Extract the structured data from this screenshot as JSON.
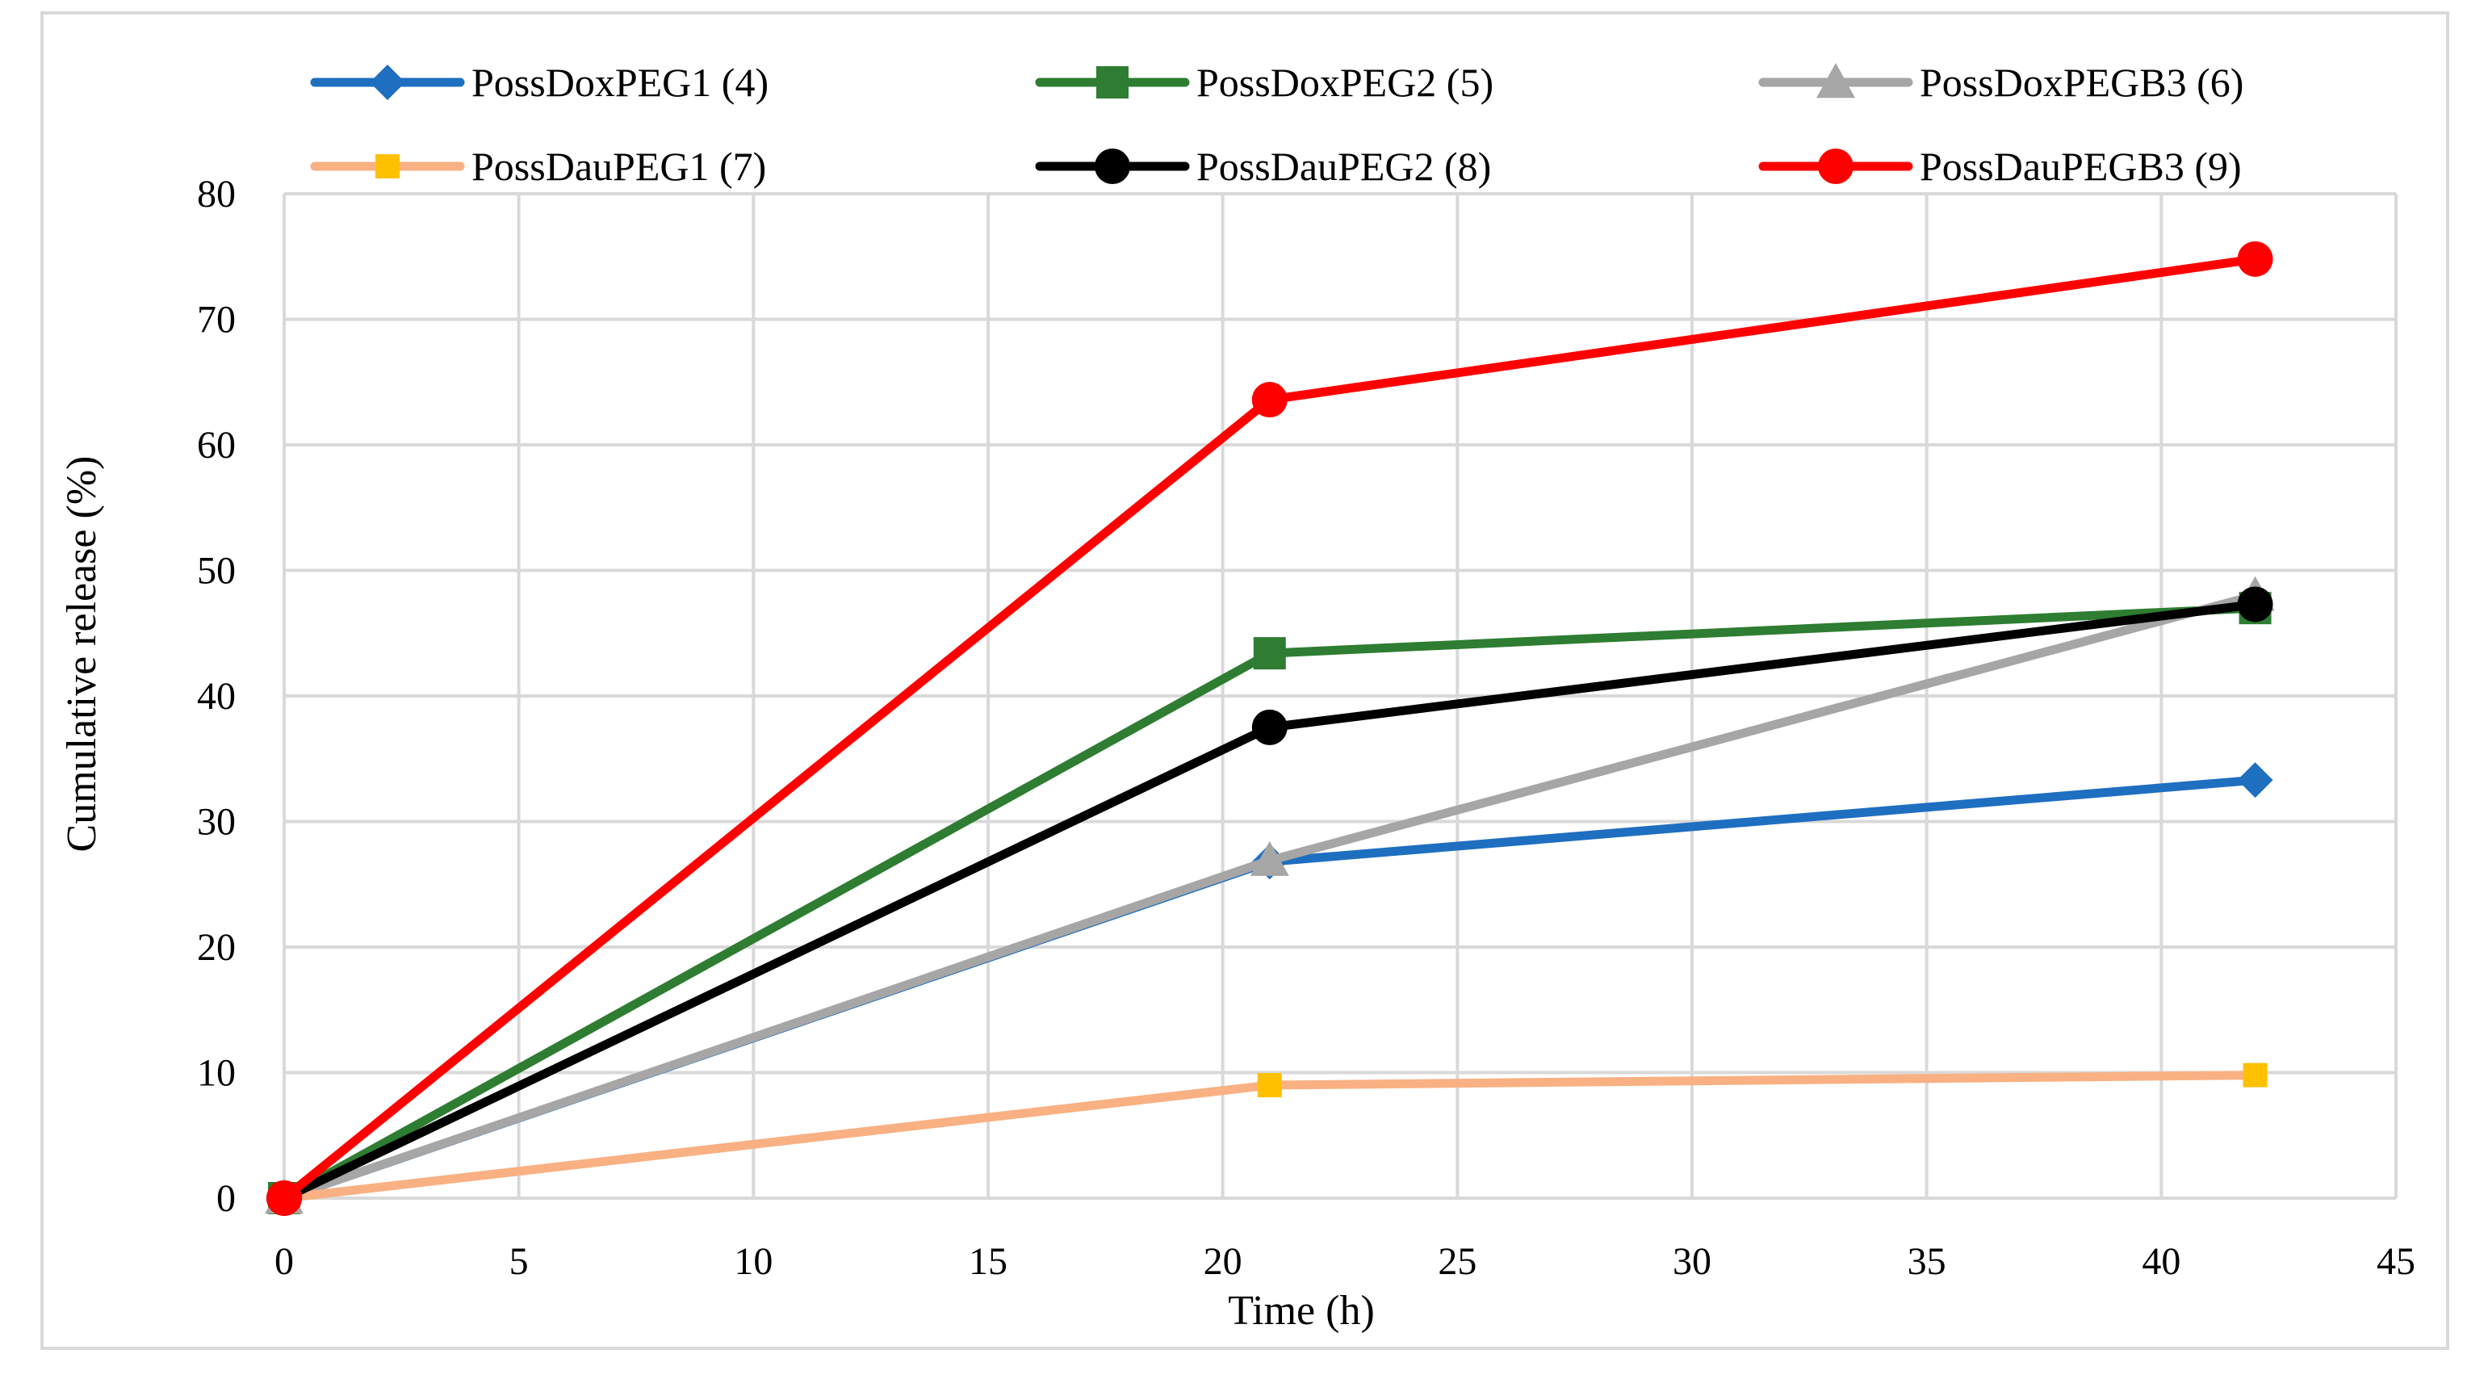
{
  "chart_data": {
    "type": "line",
    "title": "",
    "xlabel": "Time (h)",
    "ylabel": "Cumulative release (%)",
    "xlim": [
      0,
      45
    ],
    "ylim": [
      0,
      80
    ],
    "xticks": [
      0,
      5,
      10,
      15,
      20,
      25,
      30,
      35,
      40,
      45
    ],
    "yticks": [
      0,
      10,
      20,
      30,
      40,
      50,
      60,
      70,
      80
    ],
    "grid": true,
    "legend_position": "top",
    "x": [
      0,
      21,
      42
    ],
    "series": [
      {
        "name": "PossDoxPEG1 (4)",
        "values": [
          0,
          26.8,
          33.3
        ],
        "color": "#1f6fc0",
        "marker": "diamond"
      },
      {
        "name": "PossDoxPEG2 (5)",
        "values": [
          0,
          43.4,
          47.0
        ],
        "color": "#2e7d32",
        "marker": "square"
      },
      {
        "name": "PossDoxPEGB3 (6)",
        "values": [
          0,
          26.9,
          48.0
        ],
        "color": "#a6a6a6",
        "marker": "triangle"
      },
      {
        "name": "PossDauPEG1 (7)",
        "values": [
          0,
          9.0,
          9.8
        ],
        "color": "#f9b183",
        "marker": "square-small",
        "marker_color": "#ffc000"
      },
      {
        "name": "PossDauPEG2 (8)",
        "values": [
          0,
          37.5,
          47.3
        ],
        "color": "#000000",
        "marker": "circle"
      },
      {
        "name": "PossDauPEGB3 (9)",
        "values": [
          0,
          63.6,
          74.8
        ],
        "color": "#ff0000",
        "marker": "circle"
      }
    ]
  }
}
